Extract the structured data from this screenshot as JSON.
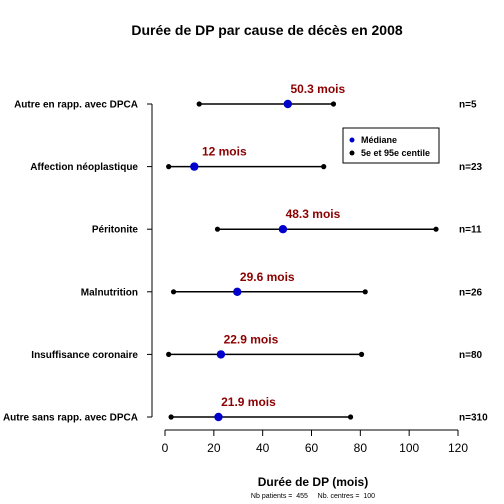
{
  "chart_data": {
    "type": "interval-dot",
    "title": "Durée de DP par cause de décès en 2008",
    "xlabel": "Durée de DP (mois)",
    "xlim": [
      0,
      120
    ],
    "xticks": [
      0,
      20,
      40,
      60,
      80,
      100,
      120
    ],
    "colors": {
      "median": "#0000cc",
      "label": "#8b0000",
      "interval": "#000000"
    },
    "legend": {
      "position": "upper-right",
      "entries": [
        {
          "label": "Médiane",
          "color": "#0000cc"
        },
        {
          "label": "5e et 95e centile",
          "color": "#000000"
        }
      ]
    },
    "rows": [
      {
        "category": "Autre en rapp. avec DPCA",
        "p5": 14,
        "median": 50.3,
        "p95": 69,
        "median_label": "50.3 mois",
        "n_label": "n=5"
      },
      {
        "category": "Affection néoplastique",
        "p5": 1.5,
        "median": 12,
        "p95": 65,
        "median_label": "12 mois",
        "n_label": "n=23"
      },
      {
        "category": "Péritonite",
        "p5": 21.5,
        "median": 48.3,
        "p95": 111,
        "median_label": "48.3 mois",
        "n_label": "n=11"
      },
      {
        "category": "Malnutrition",
        "p5": 3.5,
        "median": 29.6,
        "p95": 82,
        "median_label": "29.6 mois",
        "n_label": "n=26"
      },
      {
        "category": "Insuffisance coronaire",
        "p5": 1.5,
        "median": 22.9,
        "p95": 80.5,
        "median_label": "22.9 mois",
        "n_label": "n=80"
      },
      {
        "category": "Autre sans rapp. avec DPCA",
        "p5": 2.5,
        "median": 21.9,
        "p95": 76,
        "median_label": "21.9 mois",
        "n_label": "n=310"
      }
    ],
    "footnote": "Nb patients =  455     Nb. centres =  100"
  }
}
